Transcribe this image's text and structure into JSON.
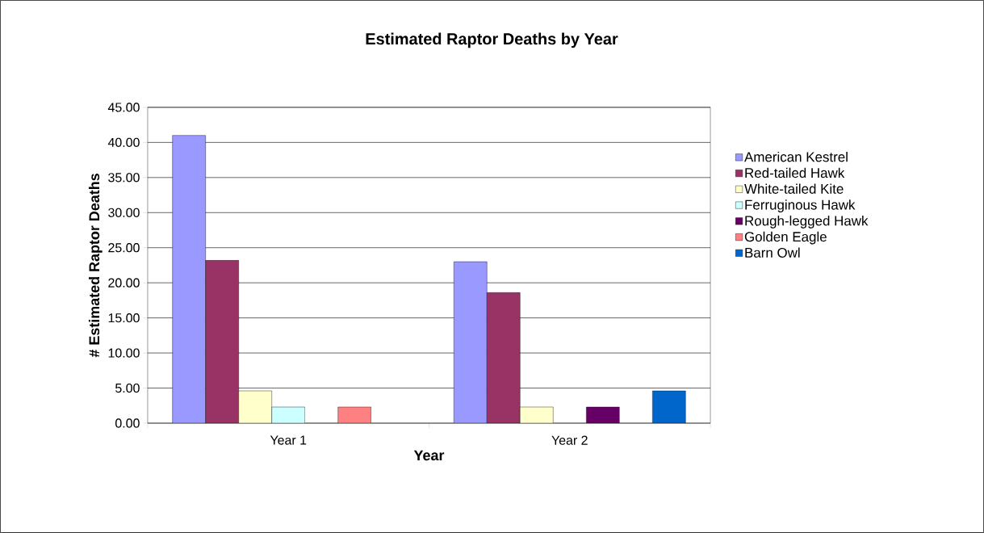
{
  "chart_data": {
    "type": "bar",
    "title": "**Estimated Raptor Deaths by Year**",
    "xlabel": "**Year**",
    "ylabel": "**# Estimated Raptor Deaths**",
    "categories": [
      "Year 1",
      "Year 2"
    ],
    "series": [
      {
        "name": "American Kestrel",
        "color": "#9999ff",
        "values": [
          41.0,
          23.0
        ]
      },
      {
        "name": "Red-tailed Hawk",
        "color": "#993366",
        "values": [
          23.2,
          18.6
        ]
      },
      {
        "name": "White-tailed Kite",
        "color": "#ffffcc",
        "values": [
          4.6,
          2.3
        ]
      },
      {
        "name": "Ferruginous Hawk",
        "color": "#ccffff",
        "values": [
          2.3,
          null
        ]
      },
      {
        "name": "Rough-legged Hawk",
        "color": "#660066",
        "values": [
          null,
          2.3
        ]
      },
      {
        "name": "Golden Eagle",
        "color": "#ff8080",
        "values": [
          2.3,
          null
        ]
      },
      {
        "name": "Barn Owl",
        "color": "#0066cc",
        "values": [
          null,
          4.6
        ]
      }
    ],
    "ylim": [
      0,
      45
    ],
    "yticks": [
      {
        "value": 0,
        "label": "0.00"
      },
      {
        "value": 5,
        "label": "5.00"
      },
      {
        "value": 10,
        "label": "10.00"
      },
      {
        "value": 15,
        "label": "15.00"
      },
      {
        "value": 20,
        "label": "20.00"
      },
      {
        "value": 25,
        "label": "25.00"
      },
      {
        "value": 30,
        "label": "30.00"
      },
      {
        "value": 35,
        "label": "35.00"
      },
      {
        "value": 40,
        "label": "40.00"
      },
      {
        "value": 45,
        "label": "45.00"
      }
    ],
    "grid": "y",
    "legend": "right"
  }
}
